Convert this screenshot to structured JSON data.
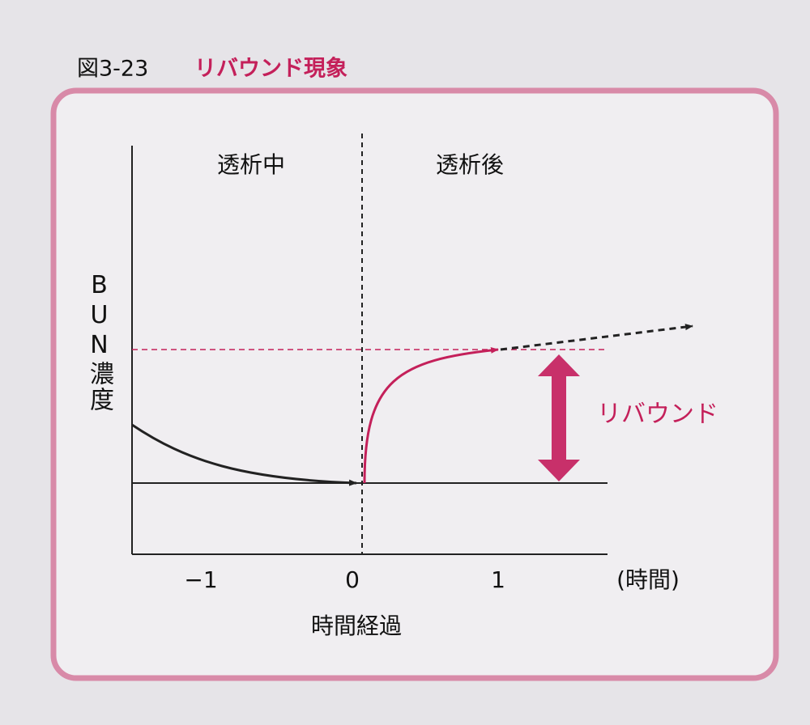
{
  "figure": {
    "number": "図3-23",
    "title": "リバウンド現象"
  },
  "diagram": {
    "phase_labels": [
      "透析中",
      "透析後"
    ],
    "y_axis_label": "BUN濃度",
    "x_axis_label": "時間経過",
    "x_ticks": [
      "−1",
      "0",
      "1"
    ],
    "x_unit": "(時間)",
    "annotation": "リバウンド"
  }
}
